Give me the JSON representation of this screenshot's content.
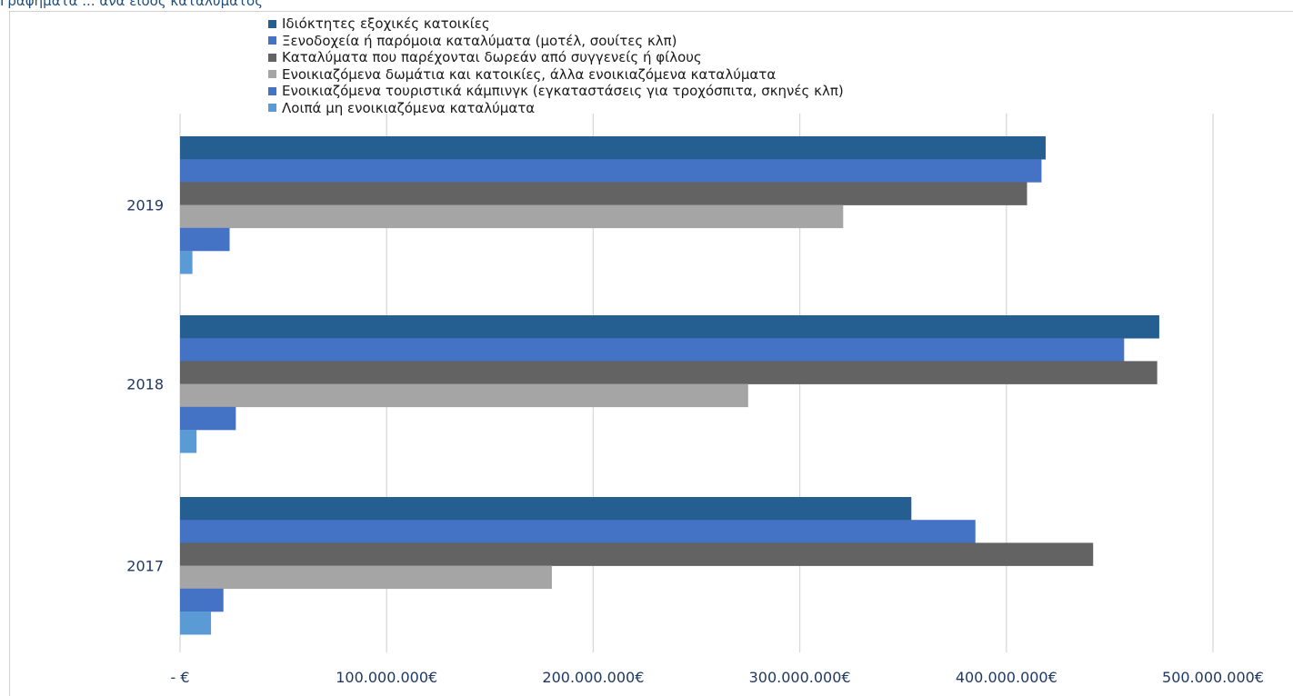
{
  "caption_fragment": "Γραφήματα ... ανά είδος καταλύματος",
  "chart_data": {
    "type": "bar",
    "orientation": "horizontal",
    "title": "",
    "xlabel": "",
    "ylabel": "",
    "categories": [
      "2019",
      "2018",
      "2017"
    ],
    "xlim": [
      0,
      500000000
    ],
    "x_ticks": [
      0,
      100000000,
      200000000,
      300000000,
      400000000,
      500000000
    ],
    "x_tick_labels": [
      "-   €",
      "100.000.000€",
      "200.000.000€",
      "300.000.000€",
      "400.000.000€",
      "500.000.000€"
    ],
    "grid": "vertical",
    "legend_position": "top",
    "series": [
      {
        "name": "Ιδιόκτητες εξοχικές κατοικίες",
        "color": "#255e91",
        "values": [
          419000000,
          474000000,
          354000000
        ]
      },
      {
        "name": "Ξενοδοχεία ή παρόμοια καταλύματα (μοτέλ, σουίτες κλπ)",
        "color": "#4472c4",
        "values": [
          417000000,
          457000000,
          385000000
        ]
      },
      {
        "name": "Καταλύματα που παρέχονται δωρεάν από συγγενείς ή φίλους",
        "color": "#636363",
        "values": [
          410000000,
          473000000,
          442000000
        ]
      },
      {
        "name": "Ενοικιαζόμενα δωμάτια και κατοικίες, άλλα ενοικιαζόμενα  καταλύματα",
        "color": "#a5a5a5",
        "values": [
          321000000,
          275000000,
          180000000
        ]
      },
      {
        "name": "Ενοικιαζόμενα τουριστικά κάμπινγκ (εγκαταστάσεις για τροχόσπιτα, σκηνές κλπ)",
        "color": "#4472c4",
        "values": [
          24000000,
          27000000,
          21000000
        ]
      },
      {
        "name": "Λοιπά μη ενοικιαζόμενα καταλύματα",
        "color": "#5b9bd5",
        "values": [
          6000000,
          8000000,
          15000000
        ]
      }
    ]
  }
}
